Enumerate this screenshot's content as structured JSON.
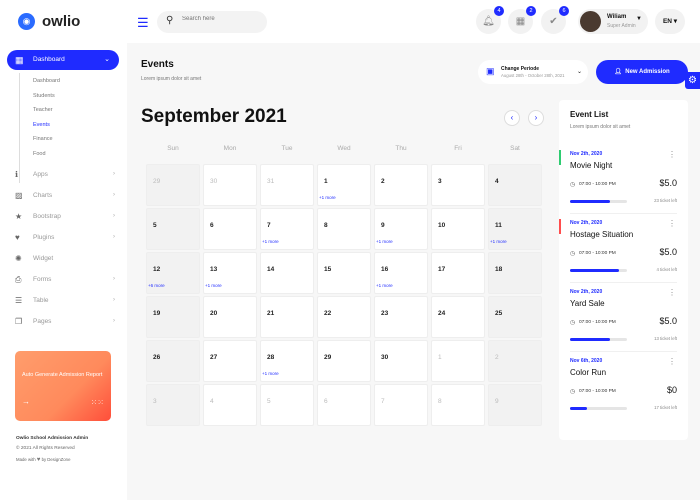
{
  "header": {
    "brand": "owlio",
    "search_placeholder": "Search here",
    "notifications": [
      {
        "icon": "bell-icon",
        "count": "4"
      },
      {
        "icon": "gift-icon",
        "count": "2"
      },
      {
        "icon": "chat-check-icon",
        "count": "6"
      }
    ],
    "user": {
      "name": "Wiliam",
      "role": "Super Admin"
    },
    "language": "EN"
  },
  "sidebar": {
    "active": "Dashboard",
    "submenu": [
      "Dashboard",
      "Students",
      "Teacher",
      "Events",
      "Finance",
      "Food"
    ],
    "active_sub": "Events",
    "items": [
      {
        "label": "Apps",
        "icon": "info-icon",
        "chev": true
      },
      {
        "label": "Charts",
        "icon": "chart-icon",
        "chev": true
      },
      {
        "label": "Bootstrap",
        "icon": "star-icon",
        "chev": true
      },
      {
        "label": "Plugins",
        "icon": "heart-icon",
        "chev": true
      },
      {
        "label": "Widget",
        "icon": "widget-icon",
        "chev": false
      },
      {
        "label": "Forms",
        "icon": "printer-icon",
        "chev": true
      },
      {
        "label": "Table",
        "icon": "table-icon",
        "chev": true
      },
      {
        "label": "Pages",
        "icon": "pages-icon",
        "chev": true
      }
    ],
    "promo": {
      "text": "Auto Generate Admission Report"
    },
    "footer": {
      "title": "Owlio School Admission Admin",
      "copyright": "© 2021 All Rights Reserved",
      "made_with": "Made with",
      "by": "by DesignZone"
    }
  },
  "page": {
    "title": "Events",
    "subtitle": "Lorem ipsum dolor sit amet",
    "period_label": "Change Periode",
    "period_range": "August 28th - October 28th, 2021",
    "new_button": "New Admission"
  },
  "calendar": {
    "month": "September 2021",
    "weekdays": [
      "Sun",
      "Mon",
      "Tue",
      "Wed",
      "Thu",
      "Fri",
      "Sat"
    ],
    "days": [
      {
        "d": "29",
        "mu": true
      },
      {
        "d": "30",
        "mu": true
      },
      {
        "d": "31",
        "mu": true
      },
      {
        "d": "1",
        "m": "+1 more"
      },
      {
        "d": "2"
      },
      {
        "d": "3"
      },
      {
        "d": "4"
      },
      {
        "d": "5"
      },
      {
        "d": "6"
      },
      {
        "d": "7",
        "m": "+1 more"
      },
      {
        "d": "8"
      },
      {
        "d": "9",
        "m": "+1 more"
      },
      {
        "d": "10"
      },
      {
        "d": "11",
        "m": "+1 more"
      },
      {
        "d": "12",
        "m": "+6 more"
      },
      {
        "d": "13",
        "m": "+1 more"
      },
      {
        "d": "14"
      },
      {
        "d": "15"
      },
      {
        "d": "16",
        "m": "+1 more"
      },
      {
        "d": "17"
      },
      {
        "d": "18"
      },
      {
        "d": "19"
      },
      {
        "d": "20"
      },
      {
        "d": "21"
      },
      {
        "d": "22"
      },
      {
        "d": "23"
      },
      {
        "d": "24"
      },
      {
        "d": "25"
      },
      {
        "d": "26"
      },
      {
        "d": "27"
      },
      {
        "d": "28",
        "m": "+1 more"
      },
      {
        "d": "29"
      },
      {
        "d": "30"
      },
      {
        "d": "1",
        "mu": true
      },
      {
        "d": "2",
        "mu": true
      },
      {
        "d": "3",
        "mu": true
      },
      {
        "d": "4",
        "mu": true
      },
      {
        "d": "5",
        "mu": true
      },
      {
        "d": "6",
        "mu": true
      },
      {
        "d": "7",
        "mu": true
      },
      {
        "d": "8",
        "mu": true
      },
      {
        "d": "9",
        "mu": true
      }
    ]
  },
  "event_list": {
    "title": "Event List",
    "subtitle": "Lorem ipsum dolor sit amet",
    "events": [
      {
        "date": "Nov 2th, 2020",
        "name": "Movie Night",
        "time": "07:00 - 10:00 PM",
        "price": "$5.0",
        "progress": 0.7,
        "left": "23 ticket left",
        "accent": "#2ecc71"
      },
      {
        "date": "Nov 2th, 2020",
        "name": "Hostage Situation",
        "time": "07:00 - 10:00 PM",
        "price": "$5.0",
        "progress": 0.86,
        "left": "4 ticket left",
        "accent": "#ff4d4d"
      },
      {
        "date": "Nov 2th, 2020",
        "name": "Yard Sale",
        "time": "07:00 - 10:00 PM",
        "price": "$5.0",
        "progress": 0.7,
        "left": "13 ticket left",
        "accent": ""
      },
      {
        "date": "Nov 6th, 2020",
        "name": "Color Run",
        "time": "07:00 - 10:00 PM",
        "price": "$0",
        "progress": 0.3,
        "left": "17 ticket left",
        "accent": ""
      }
    ]
  },
  "colors": {
    "primary": "#1f2bff",
    "promo": "#ff8a5c"
  }
}
